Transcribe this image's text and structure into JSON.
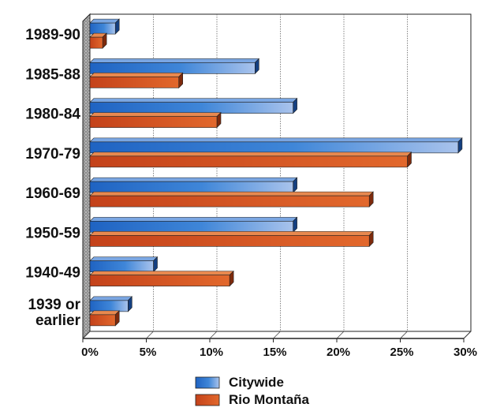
{
  "chart_data": {
    "type": "bar",
    "orientation": "horizontal",
    "title": "",
    "xlabel": "",
    "ylabel": "",
    "categories": [
      "1989-90",
      "1985-88",
      "1980-84",
      "1970-79",
      "1960-69",
      "1950-59",
      "1940-49",
      "1939 or earlier"
    ],
    "category_lines": [
      [
        "1989-90"
      ],
      [
        "1985-88"
      ],
      [
        "1980-84"
      ],
      [
        "1970-79"
      ],
      [
        "1960-69"
      ],
      [
        "1950-59"
      ],
      [
        "1940-49"
      ],
      [
        "1939 or",
        "earlier"
      ]
    ],
    "series": [
      {
        "name": "Citywide",
        "color": "#3d7fd0",
        "values": [
          2,
          13,
          16,
          29,
          16,
          16,
          5,
          3
        ]
      },
      {
        "name": "Rio Montaña",
        "color": "#d2561f",
        "values": [
          1,
          7,
          10,
          25,
          22,
          22,
          11,
          2
        ]
      }
    ],
    "xlim": [
      0,
      30
    ],
    "xticks": [
      0,
      5,
      10,
      15,
      20,
      25,
      30
    ],
    "xtick_labels": [
      "0%",
      "5%",
      "10%",
      "15%",
      "20%",
      "25%",
      "30%"
    ],
    "grid": true,
    "legend_position": "bottom-center"
  }
}
